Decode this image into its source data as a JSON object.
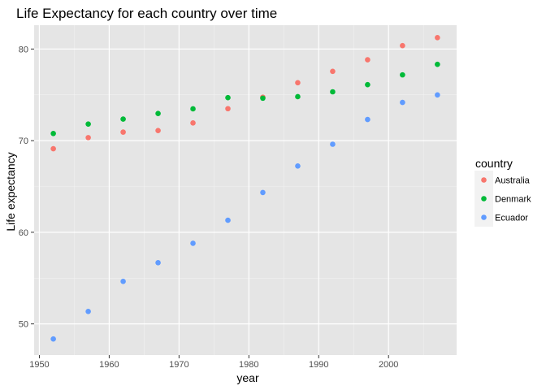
{
  "chart_data": {
    "type": "scatter",
    "title": "Life Expectancy for each country over time",
    "xlabel": "year",
    "ylabel": "Life expectancy",
    "xlim": [
      1949.25,
      2009.75
    ],
    "ylim": [
      46.6,
      82.6
    ],
    "x_major_ticks": [
      1950,
      1960,
      1970,
      1980,
      1990,
      2000
    ],
    "x_tick_labels": [
      "1950",
      "1960",
      "1970",
      "1980",
      "1990",
      "2000"
    ],
    "x_minor_ticks": [
      1955,
      1965,
      1975,
      1985,
      1995,
      2005
    ],
    "y_major_ticks": [
      50,
      60,
      70,
      80
    ],
    "y_tick_labels": [
      "50",
      "60",
      "70",
      "80"
    ],
    "y_minor_ticks": [
      55,
      65,
      75
    ],
    "grid": true,
    "background": "#e5e5e5",
    "legend": {
      "title": "country",
      "position": "right"
    },
    "x": [
      1952,
      1957,
      1962,
      1967,
      1972,
      1977,
      1982,
      1987,
      1992,
      1997,
      2002,
      2007
    ],
    "series": [
      {
        "name": "Australia",
        "color": "#f8766d",
        "values": [
          69.12,
          70.33,
          70.93,
          71.1,
          71.93,
          73.49,
          74.74,
          76.32,
          77.56,
          78.83,
          80.37,
          81.24
        ]
      },
      {
        "name": "Denmark",
        "color": "#00ba38",
        "values": [
          70.78,
          71.81,
          72.35,
          72.96,
          73.47,
          74.69,
          74.63,
          74.8,
          75.33,
          76.11,
          77.18,
          78.33
        ]
      },
      {
        "name": "Ecuador",
        "color": "#619cff",
        "values": [
          48.36,
          51.36,
          54.64,
          56.68,
          58.8,
          61.31,
          64.34,
          67.23,
          69.61,
          72.31,
          74.17,
          74.99
        ]
      }
    ]
  }
}
